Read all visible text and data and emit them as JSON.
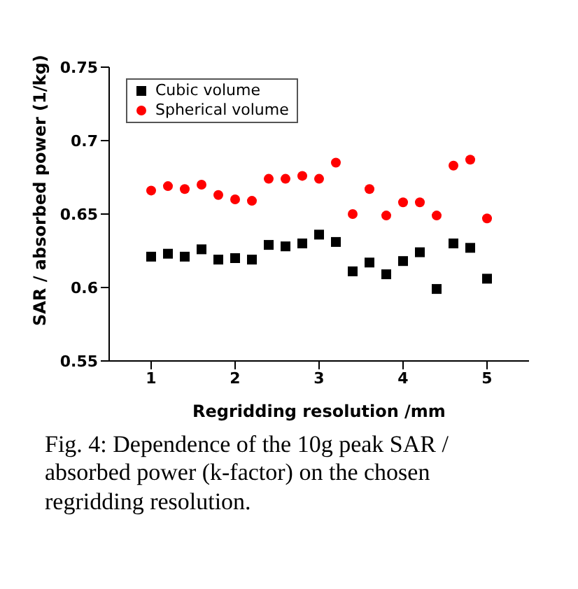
{
  "chart_data": {
    "type": "scatter",
    "xlabel": "Regridding resolution /mm",
    "ylabel": "SAR / absorbed power (1/kg)",
    "x": [
      1,
      1.2,
      1.4,
      1.6,
      1.8,
      2,
      2.2,
      2.4,
      2.6,
      2.8,
      3,
      3.2,
      3.4,
      3.6,
      3.8,
      4,
      4.2,
      4.4,
      4.6,
      4.8,
      5
    ],
    "series": [
      {
        "name": "Cubic volume",
        "color": "#000000",
        "marker": "square",
        "values": [
          0.621,
          0.623,
          0.621,
          0.626,
          0.619,
          0.62,
          0.619,
          0.629,
          0.628,
          0.63,
          0.636,
          0.631,
          0.611,
          0.617,
          0.609,
          0.618,
          0.624,
          0.599,
          0.63,
          0.627,
          0.606
        ]
      },
      {
        "name": "Spherical volume",
        "color": "#ff0000",
        "marker": "circle",
        "values": [
          0.666,
          0.669,
          0.667,
          0.67,
          0.663,
          0.66,
          0.659,
          0.674,
          0.674,
          0.676,
          0.674,
          0.685,
          0.65,
          0.667,
          0.649,
          0.658,
          0.658,
          0.649,
          0.683,
          0.687,
          0.647
        ]
      }
    ],
    "xlim": [
      0.5,
      5.5
    ],
    "xticks": [
      1,
      2,
      3,
      4,
      5
    ],
    "ylim": [
      0.55,
      0.75
    ],
    "yticks": [
      0.55,
      0.6,
      0.65,
      0.7,
      0.75
    ],
    "grid": false,
    "legend": "top left",
    "annotations": [
      "Fig. 4: Dependence of the 10g peak SAR / absorbed power (k-factor) on the chosen regridding resolution."
    ]
  }
}
